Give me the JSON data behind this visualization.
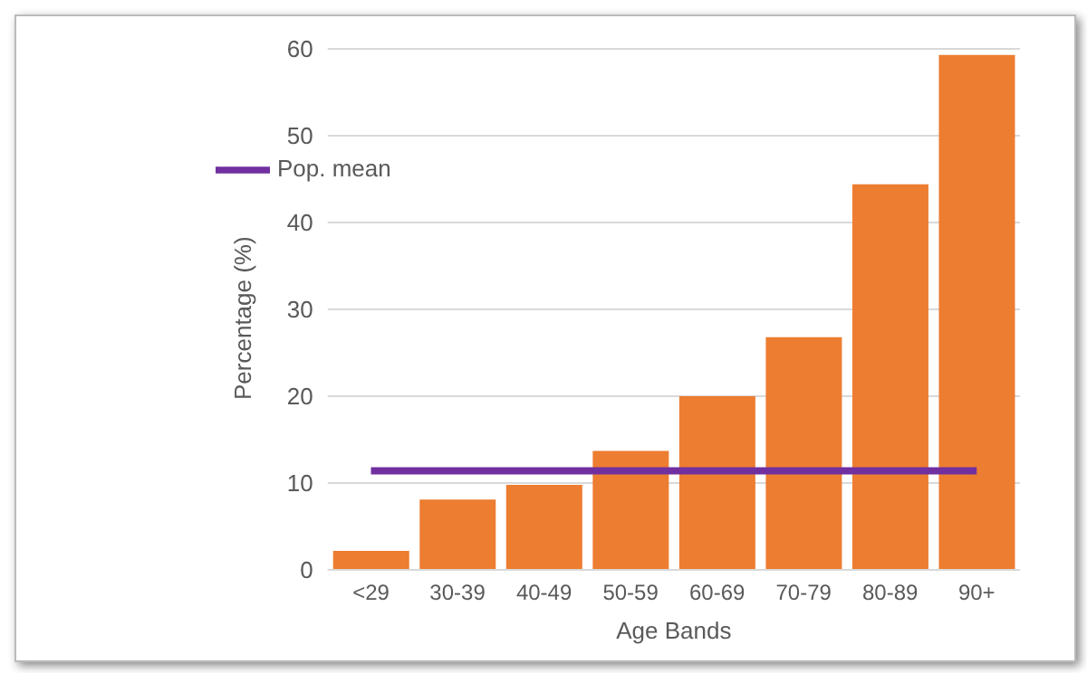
{
  "chart_data": {
    "type": "bar",
    "xlabel": "Age Bands",
    "ylabel": "Percentage (%)",
    "categories": [
      "<29",
      "30-39",
      "40-49",
      "50-59",
      "60-69",
      "70-79",
      "80-89",
      "90+"
    ],
    "series": [
      {
        "color": "#ed7d31",
        "values": [
          2.2,
          8.1,
          9.8,
          13.7,
          20.0,
          26.8,
          44.4,
          59.3
        ]
      },
      {
        "type": "line",
        "name": "Pop. mean",
        "color": "#7030a0",
        "marker": "none",
        "values": [
          11.4,
          11.4,
          11.4,
          11.4,
          11.4,
          11.4,
          11.4,
          11.4
        ]
      }
    ],
    "ylim": [
      0,
      60
    ],
    "yticks": [
      0,
      10,
      20,
      30,
      40,
      50,
      60
    ],
    "grid": "y",
    "legend": "top left"
  }
}
